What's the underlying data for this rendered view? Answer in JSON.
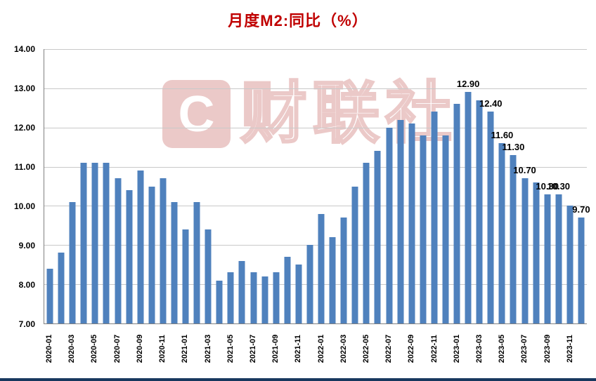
{
  "chart_data": {
    "type": "bar",
    "title": "月度M2:同比（%）",
    "categories": [
      "2020-01",
      "2020-02",
      "2020-03",
      "2020-04",
      "2020-05",
      "2020-06",
      "2020-07",
      "2020-08",
      "2020-09",
      "2020-10",
      "2020-11",
      "2020-12",
      "2021-01",
      "2021-02",
      "2021-03",
      "2021-04",
      "2021-05",
      "2021-06",
      "2021-07",
      "2021-08",
      "2021-09",
      "2021-10",
      "2021-11",
      "2021-12",
      "2022-01",
      "2022-02",
      "2022-03",
      "2022-04",
      "2022-05",
      "2022-06",
      "2022-07",
      "2022-08",
      "2022-09",
      "2022-10",
      "2022-11",
      "2022-12",
      "2023-01",
      "2023-02",
      "2023-03",
      "2023-04",
      "2023-05",
      "2023-06",
      "2023-07",
      "2023-08",
      "2023-09",
      "2023-10",
      "2023-11",
      "2023-12"
    ],
    "values": [
      8.4,
      8.8,
      10.1,
      11.1,
      11.1,
      11.1,
      10.7,
      10.4,
      10.9,
      10.5,
      10.7,
      10.1,
      9.4,
      10.1,
      9.4,
      8.1,
      8.3,
      8.6,
      8.3,
      8.2,
      8.3,
      8.7,
      8.5,
      9.0,
      9.8,
      9.2,
      9.7,
      10.5,
      11.1,
      11.4,
      12.0,
      12.2,
      12.1,
      11.8,
      12.4,
      11.8,
      12.6,
      12.9,
      12.7,
      12.4,
      11.6,
      11.3,
      10.7,
      10.6,
      10.3,
      10.3,
      10.0,
      9.7
    ],
    "ylim": [
      7,
      14
    ],
    "ytick_step": 1,
    "ytick_labels": [
      "14.00",
      "13.00",
      "12.00",
      "11.00",
      "10.00",
      "9.00",
      "8.00",
      "7.00"
    ],
    "x_tick_every": 2,
    "grid": true,
    "legend": "none",
    "data_labels": [
      {
        "index": 37,
        "text": "12.90"
      },
      {
        "index": 39,
        "text": "12.40"
      },
      {
        "index": 40,
        "text": "11.60"
      },
      {
        "index": 41,
        "text": "11.30"
      },
      {
        "index": 42,
        "text": "10.70"
      },
      {
        "index": 44,
        "text": "10.30"
      },
      {
        "index": 45,
        "text": "10.30"
      },
      {
        "index": 47,
        "text": "9.70"
      }
    ]
  },
  "watermark": {
    "logo_letter": "C",
    "text": "财联社"
  },
  "style": {
    "title_color": "#c00000",
    "bar_color": "#4f81bd",
    "grid_color": "#c9c9c9",
    "axis_color": "#808080",
    "watermark_color": "#c0504d",
    "strip_color": "#17375e"
  }
}
